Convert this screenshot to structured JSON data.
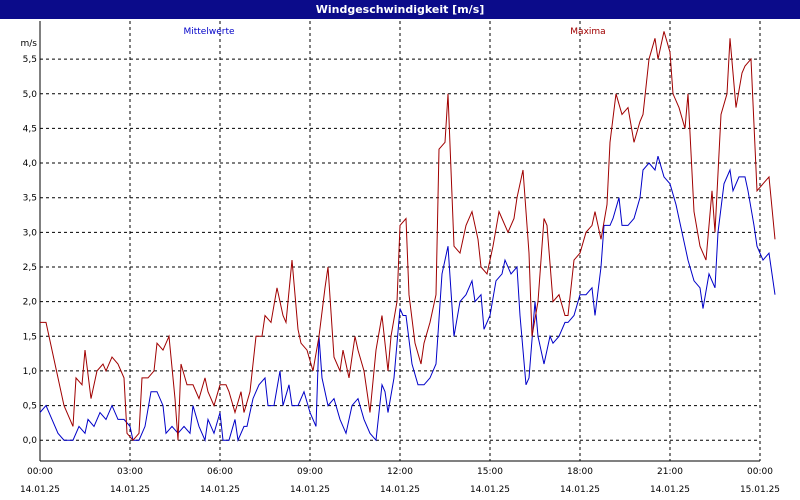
{
  "window": {
    "title": "Windgeschwindigkeit [m/s]"
  },
  "colors": {
    "mean": "#0000c8",
    "max": "#a00000",
    "grid": "#000000",
    "titlebar": "#0b0b8a"
  },
  "chart_data": {
    "type": "line",
    "title": "Windgeschwindigkeit [m/s]",
    "ylabel": "m/s",
    "ylim": [
      -0.3,
      6.05
    ],
    "y_ticks": [
      "0,0",
      "0,5",
      "1,0",
      "1,5",
      "2,0",
      "2,5",
      "3,0",
      "3,5",
      "4,0",
      "4,5",
      "5,0",
      "5,5"
    ],
    "x_ticks": [
      {
        "time": "00:00",
        "date": "14.01.25"
      },
      {
        "time": "03:00",
        "date": "14.01.25"
      },
      {
        "time": "06:00",
        "date": "14.01.25"
      },
      {
        "time": "09:00",
        "date": "14.01.25"
      },
      {
        "time": "12:00",
        "date": "14.01.25"
      },
      {
        "time": "15:00",
        "date": "14.01.25"
      },
      {
        "time": "18:00",
        "date": "14.01.25"
      },
      {
        "time": "21:00",
        "date": "14.01.25"
      },
      {
        "time": "00:00",
        "date": "15.01.25"
      }
    ],
    "grid": true,
    "x_unit": "hours",
    "series": [
      {
        "name": "Mittelwerte",
        "color": "#0000c8",
        "points": [
          [
            0,
            0.4
          ],
          [
            0.2,
            0.5
          ],
          [
            0.4,
            0.3
          ],
          [
            0.6,
            0.1
          ],
          [
            0.8,
            0.0
          ],
          [
            1.1,
            0.0
          ],
          [
            1.3,
            0.2
          ],
          [
            1.5,
            0.1
          ],
          [
            1.6,
            0.3
          ],
          [
            1.8,
            0.2
          ],
          [
            2.0,
            0.4
          ],
          [
            2.2,
            0.3
          ],
          [
            2.4,
            0.5
          ],
          [
            2.6,
            0.3
          ],
          [
            2.8,
            0.3
          ],
          [
            3.0,
            0.2
          ],
          [
            3.1,
            0.0
          ],
          [
            3.3,
            0.0
          ],
          [
            3.5,
            0.2
          ],
          [
            3.7,
            0.7
          ],
          [
            3.9,
            0.7
          ],
          [
            4.1,
            0.5
          ],
          [
            4.2,
            0.1
          ],
          [
            4.4,
            0.2
          ],
          [
            4.6,
            0.1
          ],
          [
            4.8,
            0.2
          ],
          [
            5.0,
            0.1
          ],
          [
            5.1,
            0.5
          ],
          [
            5.3,
            0.2
          ],
          [
            5.5,
            0.0
          ],
          [
            5.6,
            0.3
          ],
          [
            5.8,
            0.1
          ],
          [
            6.0,
            0.4
          ],
          [
            6.1,
            0.0
          ],
          [
            6.3,
            0.0
          ],
          [
            6.5,
            0.3
          ],
          [
            6.6,
            0.0
          ],
          [
            6.8,
            0.2
          ],
          [
            6.9,
            0.2
          ],
          [
            7.1,
            0.6
          ],
          [
            7.3,
            0.8
          ],
          [
            7.5,
            0.9
          ],
          [
            7.6,
            0.5
          ],
          [
            7.8,
            0.5
          ],
          [
            8.0,
            1.0
          ],
          [
            8.1,
            0.5
          ],
          [
            8.3,
            0.8
          ],
          [
            8.4,
            0.5
          ],
          [
            8.6,
            0.5
          ],
          [
            8.8,
            0.7
          ],
          [
            9.0,
            0.4
          ],
          [
            9.2,
            0.2
          ],
          [
            9.3,
            1.5
          ],
          [
            9.4,
            0.9
          ],
          [
            9.6,
            0.5
          ],
          [
            9.8,
            0.6
          ],
          [
            10.0,
            0.3
          ],
          [
            10.2,
            0.1
          ],
          [
            10.4,
            0.5
          ],
          [
            10.6,
            0.6
          ],
          [
            10.8,
            0.3
          ],
          [
            11.0,
            0.1
          ],
          [
            11.2,
            0.0
          ],
          [
            11.4,
            0.8
          ],
          [
            11.5,
            0.7
          ],
          [
            11.6,
            0.4
          ],
          [
            11.8,
            0.9
          ],
          [
            12.0,
            1.9
          ],
          [
            12.1,
            1.8
          ],
          [
            12.2,
            1.8
          ],
          [
            12.4,
            1.1
          ],
          [
            12.6,
            0.8
          ],
          [
            12.8,
            0.8
          ],
          [
            13.0,
            0.9
          ],
          [
            13.2,
            1.1
          ],
          [
            13.4,
            2.4
          ],
          [
            13.6,
            2.8
          ],
          [
            13.8,
            1.5
          ],
          [
            14.0,
            2.0
          ],
          [
            14.2,
            2.1
          ],
          [
            14.4,
            2.3
          ],
          [
            14.5,
            2.0
          ],
          [
            14.7,
            2.1
          ],
          [
            14.8,
            1.6
          ],
          [
            15.0,
            1.8
          ],
          [
            15.2,
            2.3
          ],
          [
            15.4,
            2.4
          ],
          [
            15.5,
            2.6
          ],
          [
            15.7,
            2.4
          ],
          [
            15.9,
            2.5
          ],
          [
            16.0,
            1.8
          ],
          [
            16.2,
            0.8
          ],
          [
            16.3,
            0.9
          ],
          [
            16.5,
            2.0
          ],
          [
            16.6,
            1.5
          ],
          [
            16.8,
            1.1
          ],
          [
            17.0,
            1.5
          ],
          [
            17.1,
            1.4
          ],
          [
            17.3,
            1.5
          ],
          [
            17.5,
            1.7
          ],
          [
            17.6,
            1.7
          ],
          [
            17.8,
            1.8
          ],
          [
            18.0,
            2.1
          ],
          [
            18.2,
            2.1
          ],
          [
            18.4,
            2.2
          ],
          [
            18.5,
            1.8
          ],
          [
            18.7,
            2.5
          ],
          [
            18.8,
            3.1
          ],
          [
            19.0,
            3.1
          ],
          [
            19.1,
            3.2
          ],
          [
            19.3,
            3.5
          ],
          [
            19.4,
            3.1
          ],
          [
            19.6,
            3.1
          ],
          [
            19.8,
            3.2
          ],
          [
            20.0,
            3.5
          ],
          [
            20.1,
            3.9
          ],
          [
            20.3,
            4.0
          ],
          [
            20.5,
            3.9
          ],
          [
            20.6,
            4.1
          ],
          [
            20.8,
            3.8
          ],
          [
            21.0,
            3.7
          ],
          [
            21.2,
            3.4
          ],
          [
            21.3,
            3.2
          ],
          [
            21.5,
            2.8
          ],
          [
            21.6,
            2.6
          ],
          [
            21.8,
            2.3
          ],
          [
            22.0,
            2.2
          ],
          [
            22.1,
            1.9
          ],
          [
            22.3,
            2.4
          ],
          [
            22.5,
            2.2
          ],
          [
            22.6,
            3.0
          ],
          [
            22.8,
            3.7
          ],
          [
            23.0,
            3.9
          ],
          [
            23.1,
            3.6
          ],
          [
            23.3,
            3.8
          ],
          [
            23.5,
            3.8
          ],
          [
            23.6,
            3.6
          ],
          [
            23.8,
            3.1
          ],
          [
            23.9,
            2.8
          ],
          [
            24.1,
            2.6
          ],
          [
            24.3,
            2.7
          ],
          [
            24.5,
            2.1
          ]
        ]
      },
      {
        "name": "Maxima",
        "color": "#a00000",
        "points": [
          [
            0,
            1.7
          ],
          [
            0.2,
            1.7
          ],
          [
            0.4,
            1.3
          ],
          [
            0.6,
            0.9
          ],
          [
            0.8,
            0.5
          ],
          [
            1.1,
            0.2
          ],
          [
            1.2,
            0.9
          ],
          [
            1.4,
            0.8
          ],
          [
            1.5,
            1.3
          ],
          [
            1.7,
            0.6
          ],
          [
            1.9,
            1.0
          ],
          [
            2.1,
            1.1
          ],
          [
            2.2,
            1.0
          ],
          [
            2.4,
            1.2
          ],
          [
            2.6,
            1.1
          ],
          [
            2.8,
            0.9
          ],
          [
            2.9,
            0.1
          ],
          [
            3.1,
            0.0
          ],
          [
            3.3,
            0.1
          ],
          [
            3.4,
            0.9
          ],
          [
            3.6,
            0.9
          ],
          [
            3.8,
            1.0
          ],
          [
            3.9,
            1.4
          ],
          [
            4.1,
            1.3
          ],
          [
            4.3,
            1.5
          ],
          [
            4.5,
            0.6
          ],
          [
            4.6,
            0.0
          ],
          [
            4.7,
            1.1
          ],
          [
            4.9,
            0.8
          ],
          [
            5.1,
            0.8
          ],
          [
            5.3,
            0.6
          ],
          [
            5.5,
            0.9
          ],
          [
            5.6,
            0.7
          ],
          [
            5.8,
            0.5
          ],
          [
            6.0,
            0.8
          ],
          [
            6.2,
            0.8
          ],
          [
            6.3,
            0.7
          ],
          [
            6.5,
            0.4
          ],
          [
            6.7,
            0.7
          ],
          [
            6.8,
            0.4
          ],
          [
            7.0,
            0.7
          ],
          [
            7.2,
            1.5
          ],
          [
            7.4,
            1.5
          ],
          [
            7.5,
            1.8
          ],
          [
            7.7,
            1.7
          ],
          [
            7.9,
            2.2
          ],
          [
            8.1,
            1.8
          ],
          [
            8.2,
            1.7
          ],
          [
            8.4,
            2.6
          ],
          [
            8.6,
            1.6
          ],
          [
            8.7,
            1.4
          ],
          [
            8.9,
            1.3
          ],
          [
            9.1,
            1.0
          ],
          [
            9.3,
            1.5
          ],
          [
            9.5,
            2.2
          ],
          [
            9.6,
            2.5
          ],
          [
            9.8,
            1.2
          ],
          [
            10.0,
            1.0
          ],
          [
            10.1,
            1.3
          ],
          [
            10.3,
            0.9
          ],
          [
            10.5,
            1.5
          ],
          [
            10.6,
            1.3
          ],
          [
            10.8,
            1.0
          ],
          [
            11.0,
            0.4
          ],
          [
            11.2,
            1.3
          ],
          [
            11.4,
            1.8
          ],
          [
            11.6,
            1.0
          ],
          [
            11.7,
            1.5
          ],
          [
            11.9,
            2.0
          ],
          [
            12.0,
            3.1
          ],
          [
            12.2,
            3.2
          ],
          [
            12.3,
            2.1
          ],
          [
            12.5,
            1.4
          ],
          [
            12.7,
            1.1
          ],
          [
            12.8,
            1.4
          ],
          [
            13.0,
            1.7
          ],
          [
            13.2,
            2.1
          ],
          [
            13.3,
            4.2
          ],
          [
            13.5,
            4.3
          ],
          [
            13.6,
            5.0
          ],
          [
            13.8,
            2.8
          ],
          [
            14.0,
            2.7
          ],
          [
            14.2,
            3.1
          ],
          [
            14.4,
            3.3
          ],
          [
            14.6,
            2.9
          ],
          [
            14.7,
            2.5
          ],
          [
            14.9,
            2.4
          ],
          [
            15.1,
            2.8
          ],
          [
            15.3,
            3.3
          ],
          [
            15.4,
            3.2
          ],
          [
            15.6,
            3.0
          ],
          [
            15.8,
            3.2
          ],
          [
            15.9,
            3.5
          ],
          [
            16.1,
            3.9
          ],
          [
            16.3,
            2.7
          ],
          [
            16.4,
            1.5
          ],
          [
            16.6,
            2.0
          ],
          [
            16.8,
            3.2
          ],
          [
            16.9,
            3.1
          ],
          [
            17.1,
            2.0
          ],
          [
            17.3,
            2.1
          ],
          [
            17.5,
            1.8
          ],
          [
            17.6,
            1.8
          ],
          [
            17.8,
            2.6
          ],
          [
            18.0,
            2.7
          ],
          [
            18.2,
            3.0
          ],
          [
            18.4,
            3.1
          ],
          [
            18.5,
            3.3
          ],
          [
            18.7,
            2.9
          ],
          [
            18.9,
            3.4
          ],
          [
            19.0,
            4.3
          ],
          [
            19.2,
            5.0
          ],
          [
            19.4,
            4.7
          ],
          [
            19.6,
            4.8
          ],
          [
            19.8,
            4.3
          ],
          [
            20.0,
            4.6
          ],
          [
            20.1,
            4.7
          ],
          [
            20.3,
            5.5
          ],
          [
            20.5,
            5.8
          ],
          [
            20.6,
            5.5
          ],
          [
            20.8,
            5.9
          ],
          [
            21.0,
            5.6
          ],
          [
            21.1,
            5.0
          ],
          [
            21.3,
            4.8
          ],
          [
            21.5,
            4.5
          ],
          [
            21.6,
            5.0
          ],
          [
            21.8,
            3.3
          ],
          [
            22.0,
            2.8
          ],
          [
            22.2,
            2.6
          ],
          [
            22.4,
            3.6
          ],
          [
            22.5,
            3.0
          ],
          [
            22.7,
            4.7
          ],
          [
            22.9,
            5.0
          ],
          [
            23.0,
            5.8
          ],
          [
            23.2,
            4.8
          ],
          [
            23.4,
            5.3
          ],
          [
            23.5,
            5.4
          ],
          [
            23.7,
            5.5
          ],
          [
            23.9,
            3.6
          ],
          [
            24.1,
            3.7
          ],
          [
            24.3,
            3.8
          ],
          [
            24.5,
            2.9
          ]
        ]
      }
    ]
  }
}
